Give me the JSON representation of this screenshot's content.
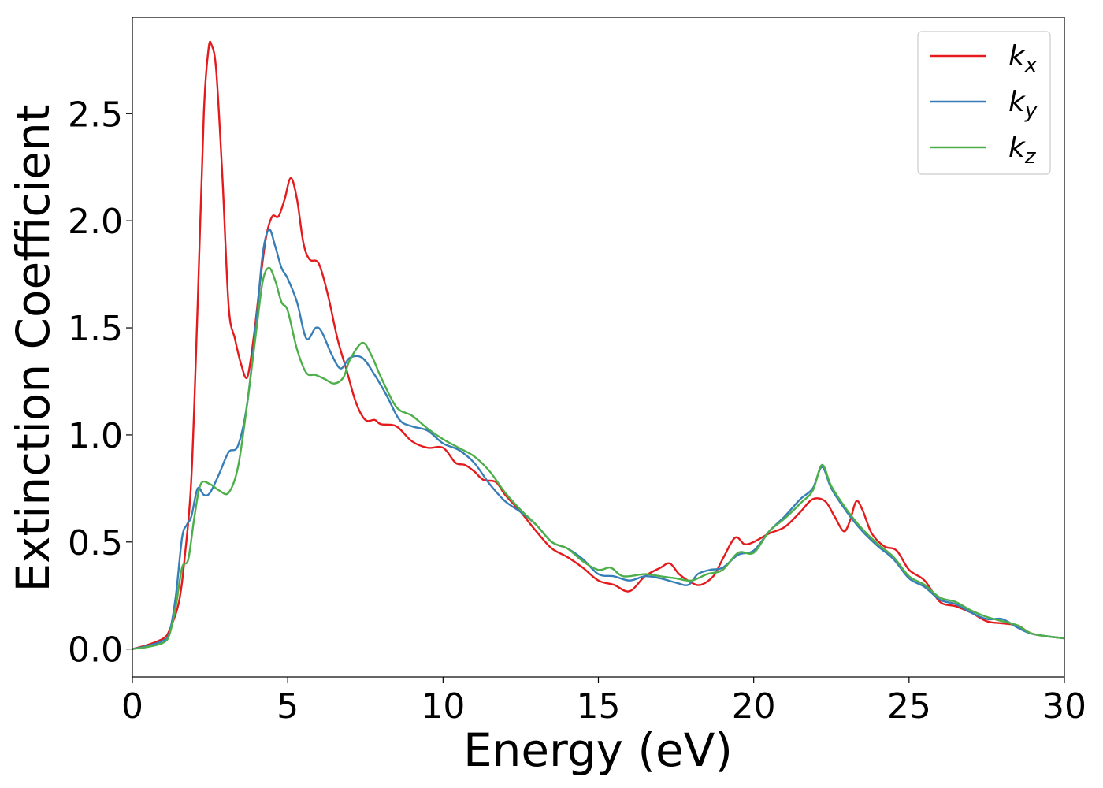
{
  "chart_data": {
    "type": "line",
    "xlabel": "Energy (eV)",
    "ylabel": "Extinction Coefficient",
    "xlim": [
      0,
      30
    ],
    "ylim": [
      -0.13,
      2.95
    ],
    "xticks": [
      0,
      5,
      10,
      15,
      20,
      25,
      30
    ],
    "xtick_labels": [
      "0",
      "5",
      "10",
      "15",
      "20",
      "25",
      "30"
    ],
    "yticks": [
      0.0,
      0.5,
      1.0,
      1.5,
      2.0,
      2.5
    ],
    "ytick_labels": [
      "0.0",
      "0.5",
      "1.0",
      "1.5",
      "2.0",
      "2.5"
    ],
    "grid": false,
    "legend_position": "top-right",
    "series": [
      {
        "name": "k_x",
        "label_main": "k",
        "label_sub": "x",
        "color": "#e41a1c",
        "points": [
          [
            0,
            0
          ],
          [
            0.5,
            0.02
          ],
          [
            1.0,
            0.05
          ],
          [
            1.2,
            0.09
          ],
          [
            1.5,
            0.22
          ],
          [
            1.7,
            0.45
          ],
          [
            1.9,
            0.8
          ],
          [
            2.1,
            1.6
          ],
          [
            2.3,
            2.5
          ],
          [
            2.45,
            2.8
          ],
          [
            2.55,
            2.82
          ],
          [
            2.7,
            2.7
          ],
          [
            2.9,
            2.2
          ],
          [
            3.1,
            1.6
          ],
          [
            3.3,
            1.45
          ],
          [
            3.5,
            1.33
          ],
          [
            3.7,
            1.27
          ],
          [
            3.9,
            1.45
          ],
          [
            4.1,
            1.7
          ],
          [
            4.3,
            1.92
          ],
          [
            4.5,
            2.02
          ],
          [
            4.7,
            2.02
          ],
          [
            4.9,
            2.1
          ],
          [
            5.1,
            2.2
          ],
          [
            5.3,
            2.1
          ],
          [
            5.5,
            1.9
          ],
          [
            5.7,
            1.82
          ],
          [
            6.0,
            1.8
          ],
          [
            6.3,
            1.65
          ],
          [
            6.6,
            1.45
          ],
          [
            6.9,
            1.3
          ],
          [
            7.2,
            1.15
          ],
          [
            7.5,
            1.07
          ],
          [
            7.8,
            1.07
          ],
          [
            8.0,
            1.05
          ],
          [
            8.5,
            1.04
          ],
          [
            9.0,
            0.97
          ],
          [
            9.5,
            0.94
          ],
          [
            10.0,
            0.94
          ],
          [
            10.4,
            0.87
          ],
          [
            10.7,
            0.86
          ],
          [
            11.0,
            0.83
          ],
          [
            11.3,
            0.79
          ],
          [
            11.7,
            0.78
          ],
          [
            12.0,
            0.72
          ],
          [
            12.5,
            0.64
          ],
          [
            13.0,
            0.55
          ],
          [
            13.5,
            0.47
          ],
          [
            14.0,
            0.43
          ],
          [
            14.5,
            0.38
          ],
          [
            15.0,
            0.32
          ],
          [
            15.5,
            0.3
          ],
          [
            16.0,
            0.27
          ],
          [
            16.5,
            0.34
          ],
          [
            17.0,
            0.38
          ],
          [
            17.3,
            0.4
          ],
          [
            17.6,
            0.35
          ],
          [
            18.0,
            0.31
          ],
          [
            18.3,
            0.3
          ],
          [
            18.7,
            0.34
          ],
          [
            19.0,
            0.42
          ],
          [
            19.4,
            0.52
          ],
          [
            19.7,
            0.49
          ],
          [
            20.0,
            0.5
          ],
          [
            20.5,
            0.54
          ],
          [
            21.0,
            0.57
          ],
          [
            21.5,
            0.64
          ],
          [
            21.9,
            0.7
          ],
          [
            22.3,
            0.69
          ],
          [
            22.6,
            0.62
          ],
          [
            22.9,
            0.55
          ],
          [
            23.1,
            0.6
          ],
          [
            23.3,
            0.69
          ],
          [
            23.5,
            0.65
          ],
          [
            23.8,
            0.54
          ],
          [
            24.2,
            0.48
          ],
          [
            24.6,
            0.46
          ],
          [
            25.0,
            0.37
          ],
          [
            25.5,
            0.32
          ],
          [
            26.0,
            0.22
          ],
          [
            26.5,
            0.2
          ],
          [
            27.0,
            0.17
          ],
          [
            27.5,
            0.13
          ],
          [
            28.0,
            0.12
          ],
          [
            28.5,
            0.11
          ],
          [
            29.0,
            0.07
          ],
          [
            30.0,
            0.05
          ]
        ]
      },
      {
        "name": "k_y",
        "label_main": "k",
        "label_sub": "y",
        "color": "#377eb8",
        "points": [
          [
            0,
            0
          ],
          [
            0.5,
            0.015
          ],
          [
            1.0,
            0.04
          ],
          [
            1.2,
            0.08
          ],
          [
            1.4,
            0.25
          ],
          [
            1.6,
            0.52
          ],
          [
            1.75,
            0.58
          ],
          [
            1.9,
            0.62
          ],
          [
            2.1,
            0.75
          ],
          [
            2.3,
            0.72
          ],
          [
            2.5,
            0.73
          ],
          [
            2.8,
            0.82
          ],
          [
            3.1,
            0.92
          ],
          [
            3.4,
            0.95
          ],
          [
            3.7,
            1.15
          ],
          [
            4.0,
            1.55
          ],
          [
            4.2,
            1.85
          ],
          [
            4.4,
            1.96
          ],
          [
            4.6,
            1.88
          ],
          [
            4.8,
            1.78
          ],
          [
            5.0,
            1.73
          ],
          [
            5.3,
            1.62
          ],
          [
            5.6,
            1.45
          ],
          [
            5.9,
            1.5
          ],
          [
            6.1,
            1.48
          ],
          [
            6.4,
            1.38
          ],
          [
            6.7,
            1.31
          ],
          [
            7.0,
            1.36
          ],
          [
            7.4,
            1.36
          ],
          [
            7.8,
            1.28
          ],
          [
            8.2,
            1.18
          ],
          [
            8.6,
            1.07
          ],
          [
            9.0,
            1.04
          ],
          [
            9.5,
            1.02
          ],
          [
            10.0,
            0.96
          ],
          [
            10.5,
            0.93
          ],
          [
            11.0,
            0.87
          ],
          [
            11.5,
            0.77
          ],
          [
            12.0,
            0.69
          ],
          [
            12.5,
            0.64
          ],
          [
            13.0,
            0.58
          ],
          [
            13.5,
            0.5
          ],
          [
            14.0,
            0.47
          ],
          [
            14.5,
            0.42
          ],
          [
            15.0,
            0.35
          ],
          [
            15.5,
            0.34
          ],
          [
            16.0,
            0.32
          ],
          [
            16.5,
            0.34
          ],
          [
            17.0,
            0.33
          ],
          [
            17.5,
            0.31
          ],
          [
            17.9,
            0.3
          ],
          [
            18.2,
            0.35
          ],
          [
            18.6,
            0.37
          ],
          [
            19.0,
            0.38
          ],
          [
            19.5,
            0.44
          ],
          [
            20.0,
            0.46
          ],
          [
            20.5,
            0.55
          ],
          [
            21.0,
            0.62
          ],
          [
            21.5,
            0.7
          ],
          [
            21.9,
            0.75
          ],
          [
            22.2,
            0.85
          ],
          [
            22.5,
            0.75
          ],
          [
            23.0,
            0.64
          ],
          [
            23.5,
            0.55
          ],
          [
            24.0,
            0.48
          ],
          [
            24.5,
            0.42
          ],
          [
            25.0,
            0.33
          ],
          [
            25.5,
            0.29
          ],
          [
            26.0,
            0.23
          ],
          [
            26.5,
            0.21
          ],
          [
            27.0,
            0.17
          ],
          [
            27.5,
            0.14
          ],
          [
            28.0,
            0.14
          ],
          [
            28.5,
            0.1
          ],
          [
            29.0,
            0.07
          ],
          [
            30.0,
            0.05
          ]
        ]
      },
      {
        "name": "k_z",
        "label_main": "k",
        "label_sub": "z",
        "color": "#4daf4a",
        "points": [
          [
            0,
            0
          ],
          [
            0.5,
            0.01
          ],
          [
            1.0,
            0.03
          ],
          [
            1.2,
            0.07
          ],
          [
            1.4,
            0.2
          ],
          [
            1.6,
            0.38
          ],
          [
            1.8,
            0.42
          ],
          [
            2.0,
            0.62
          ],
          [
            2.2,
            0.77
          ],
          [
            2.5,
            0.77
          ],
          [
            2.8,
            0.74
          ],
          [
            3.1,
            0.73
          ],
          [
            3.4,
            0.85
          ],
          [
            3.7,
            1.15
          ],
          [
            4.0,
            1.5
          ],
          [
            4.2,
            1.72
          ],
          [
            4.4,
            1.78
          ],
          [
            4.6,
            1.72
          ],
          [
            4.8,
            1.62
          ],
          [
            5.0,
            1.58
          ],
          [
            5.3,
            1.4
          ],
          [
            5.6,
            1.29
          ],
          [
            5.9,
            1.28
          ],
          [
            6.2,
            1.26
          ],
          [
            6.5,
            1.24
          ],
          [
            6.8,
            1.27
          ],
          [
            7.0,
            1.35
          ],
          [
            7.4,
            1.43
          ],
          [
            7.7,
            1.37
          ],
          [
            8.0,
            1.27
          ],
          [
            8.5,
            1.13
          ],
          [
            9.0,
            1.09
          ],
          [
            9.5,
            1.03
          ],
          [
            10.0,
            0.98
          ],
          [
            10.5,
            0.94
          ],
          [
            11.0,
            0.9
          ],
          [
            11.5,
            0.83
          ],
          [
            12.0,
            0.73
          ],
          [
            12.5,
            0.65
          ],
          [
            13.0,
            0.58
          ],
          [
            13.5,
            0.5
          ],
          [
            14.0,
            0.47
          ],
          [
            14.5,
            0.41
          ],
          [
            15.0,
            0.37
          ],
          [
            15.4,
            0.38
          ],
          [
            15.8,
            0.34
          ],
          [
            16.5,
            0.35
          ],
          [
            17.0,
            0.34
          ],
          [
            17.5,
            0.33
          ],
          [
            18.0,
            0.32
          ],
          [
            18.5,
            0.35
          ],
          [
            19.0,
            0.37
          ],
          [
            19.5,
            0.45
          ],
          [
            20.0,
            0.45
          ],
          [
            20.5,
            0.55
          ],
          [
            21.0,
            0.61
          ],
          [
            21.5,
            0.68
          ],
          [
            21.9,
            0.74
          ],
          [
            22.2,
            0.86
          ],
          [
            22.5,
            0.76
          ],
          [
            23.0,
            0.65
          ],
          [
            23.5,
            0.56
          ],
          [
            24.0,
            0.49
          ],
          [
            24.5,
            0.43
          ],
          [
            25.0,
            0.34
          ],
          [
            25.5,
            0.3
          ],
          [
            26.0,
            0.24
          ],
          [
            26.5,
            0.22
          ],
          [
            27.0,
            0.18
          ],
          [
            27.5,
            0.15
          ],
          [
            28.0,
            0.13
          ],
          [
            28.5,
            0.11
          ],
          [
            29.0,
            0.07
          ],
          [
            30.0,
            0.05
          ]
        ]
      }
    ]
  }
}
